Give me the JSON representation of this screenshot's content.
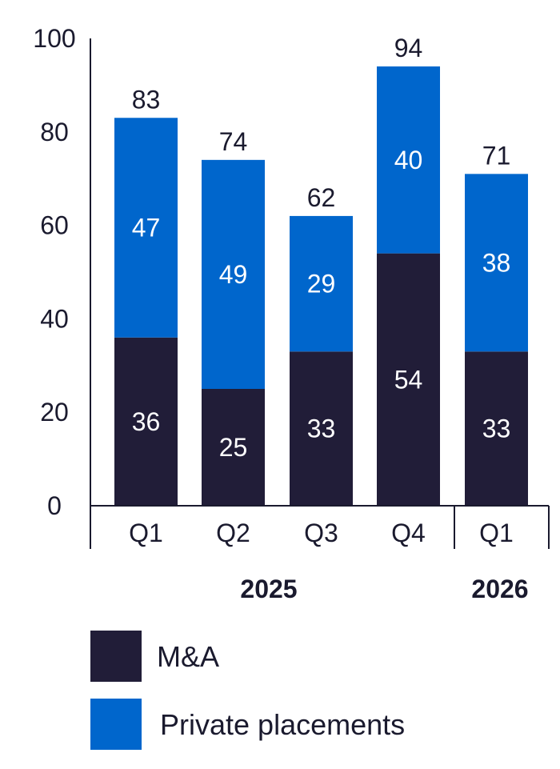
{
  "chart_data": {
    "type": "bar",
    "stacked": true,
    "categories": [
      "Q1",
      "Q2",
      "Q3",
      "Q4",
      "Q1"
    ],
    "years": [
      {
        "label": "2025",
        "from": 0,
        "to": 3
      },
      {
        "label": "2026",
        "from": 4,
        "to": 4
      }
    ],
    "series": [
      {
        "name": "M&A",
        "color": "#211d38",
        "values": [
          36,
          25,
          33,
          54,
          33
        ]
      },
      {
        "name": "Private placements",
        "color": "#0066cc",
        "values": [
          47,
          49,
          29,
          40,
          38
        ]
      }
    ],
    "totals": [
      83,
      74,
      62,
      94,
      71
    ],
    "y_ticks": [
      0,
      20,
      40,
      60,
      80,
      100
    ],
    "ylim": [
      0,
      100
    ],
    "grid": false,
    "legend": "bottom",
    "title": "",
    "xlabel": "",
    "ylabel": ""
  }
}
